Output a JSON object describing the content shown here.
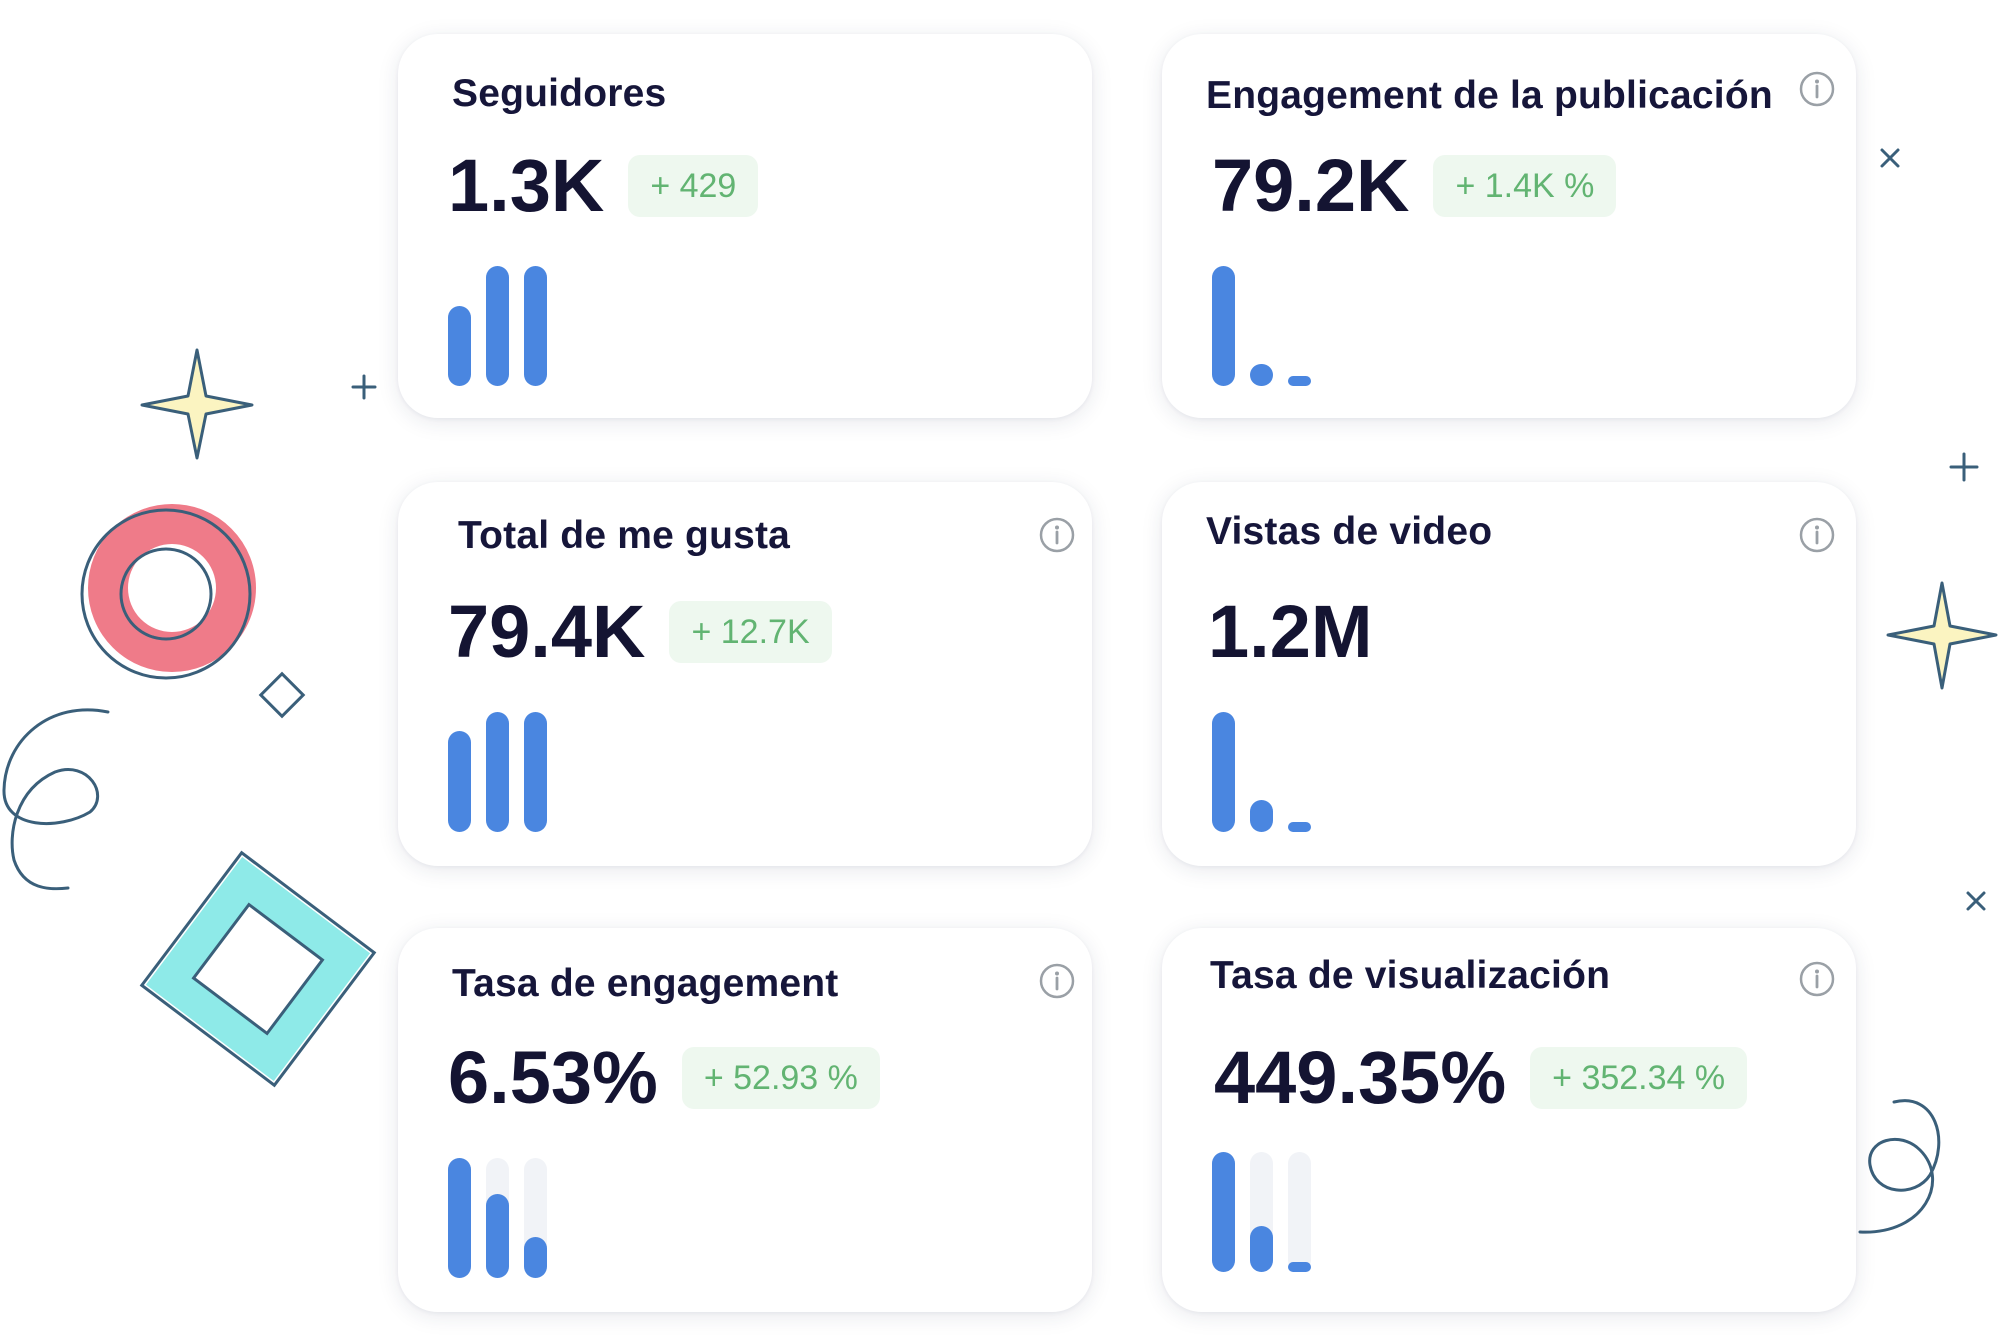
{
  "cards": [
    {
      "title": "Seguidores",
      "value": "1.3K",
      "delta": "+ 429",
      "info_icon": false,
      "bar_tracks": false,
      "bars": [
        0.67,
        1.0,
        1.0
      ]
    },
    {
      "title": "Engagement de la publicación",
      "value": "79.2K",
      "delta": "+ 1.4K %",
      "info_icon": true,
      "bar_tracks": false,
      "bars": [
        1.0,
        0.18,
        0.08
      ]
    },
    {
      "title": "Total de me gusta",
      "value": "79.4K",
      "delta": "+ 12.7K",
      "info_icon": true,
      "bar_tracks": false,
      "bars": [
        0.84,
        1.0,
        1.0
      ]
    },
    {
      "title": "Vistas de video",
      "value": "1.2M",
      "delta": "",
      "info_icon": true,
      "bar_tracks": false,
      "bars": [
        1.0,
        0.27,
        0.08
      ]
    },
    {
      "title": "Tasa de engagement",
      "value": "6.53%",
      "delta": "+ 52.93 %",
      "info_icon": true,
      "bar_tracks": true,
      "bars": [
        1.0,
        0.7,
        0.34
      ]
    },
    {
      "title": "Tasa de visualización",
      "value": "449.35%",
      "delta": "+ 352.34 %",
      "info_icon": true,
      "bar_tracks": true,
      "bars": [
        1.0,
        0.38,
        0.08
      ]
    }
  ],
  "colors": {
    "bar": "#4a86e0",
    "delta_bg": "#eef8ef",
    "delta_text": "#62b472",
    "title": "#16163a",
    "ring": "#ef7b89",
    "square": "#8eeae8",
    "star": "#fbf4c1",
    "outline": "#3a5f7a"
  },
  "icons": {
    "info": "info-circle-icon"
  }
}
